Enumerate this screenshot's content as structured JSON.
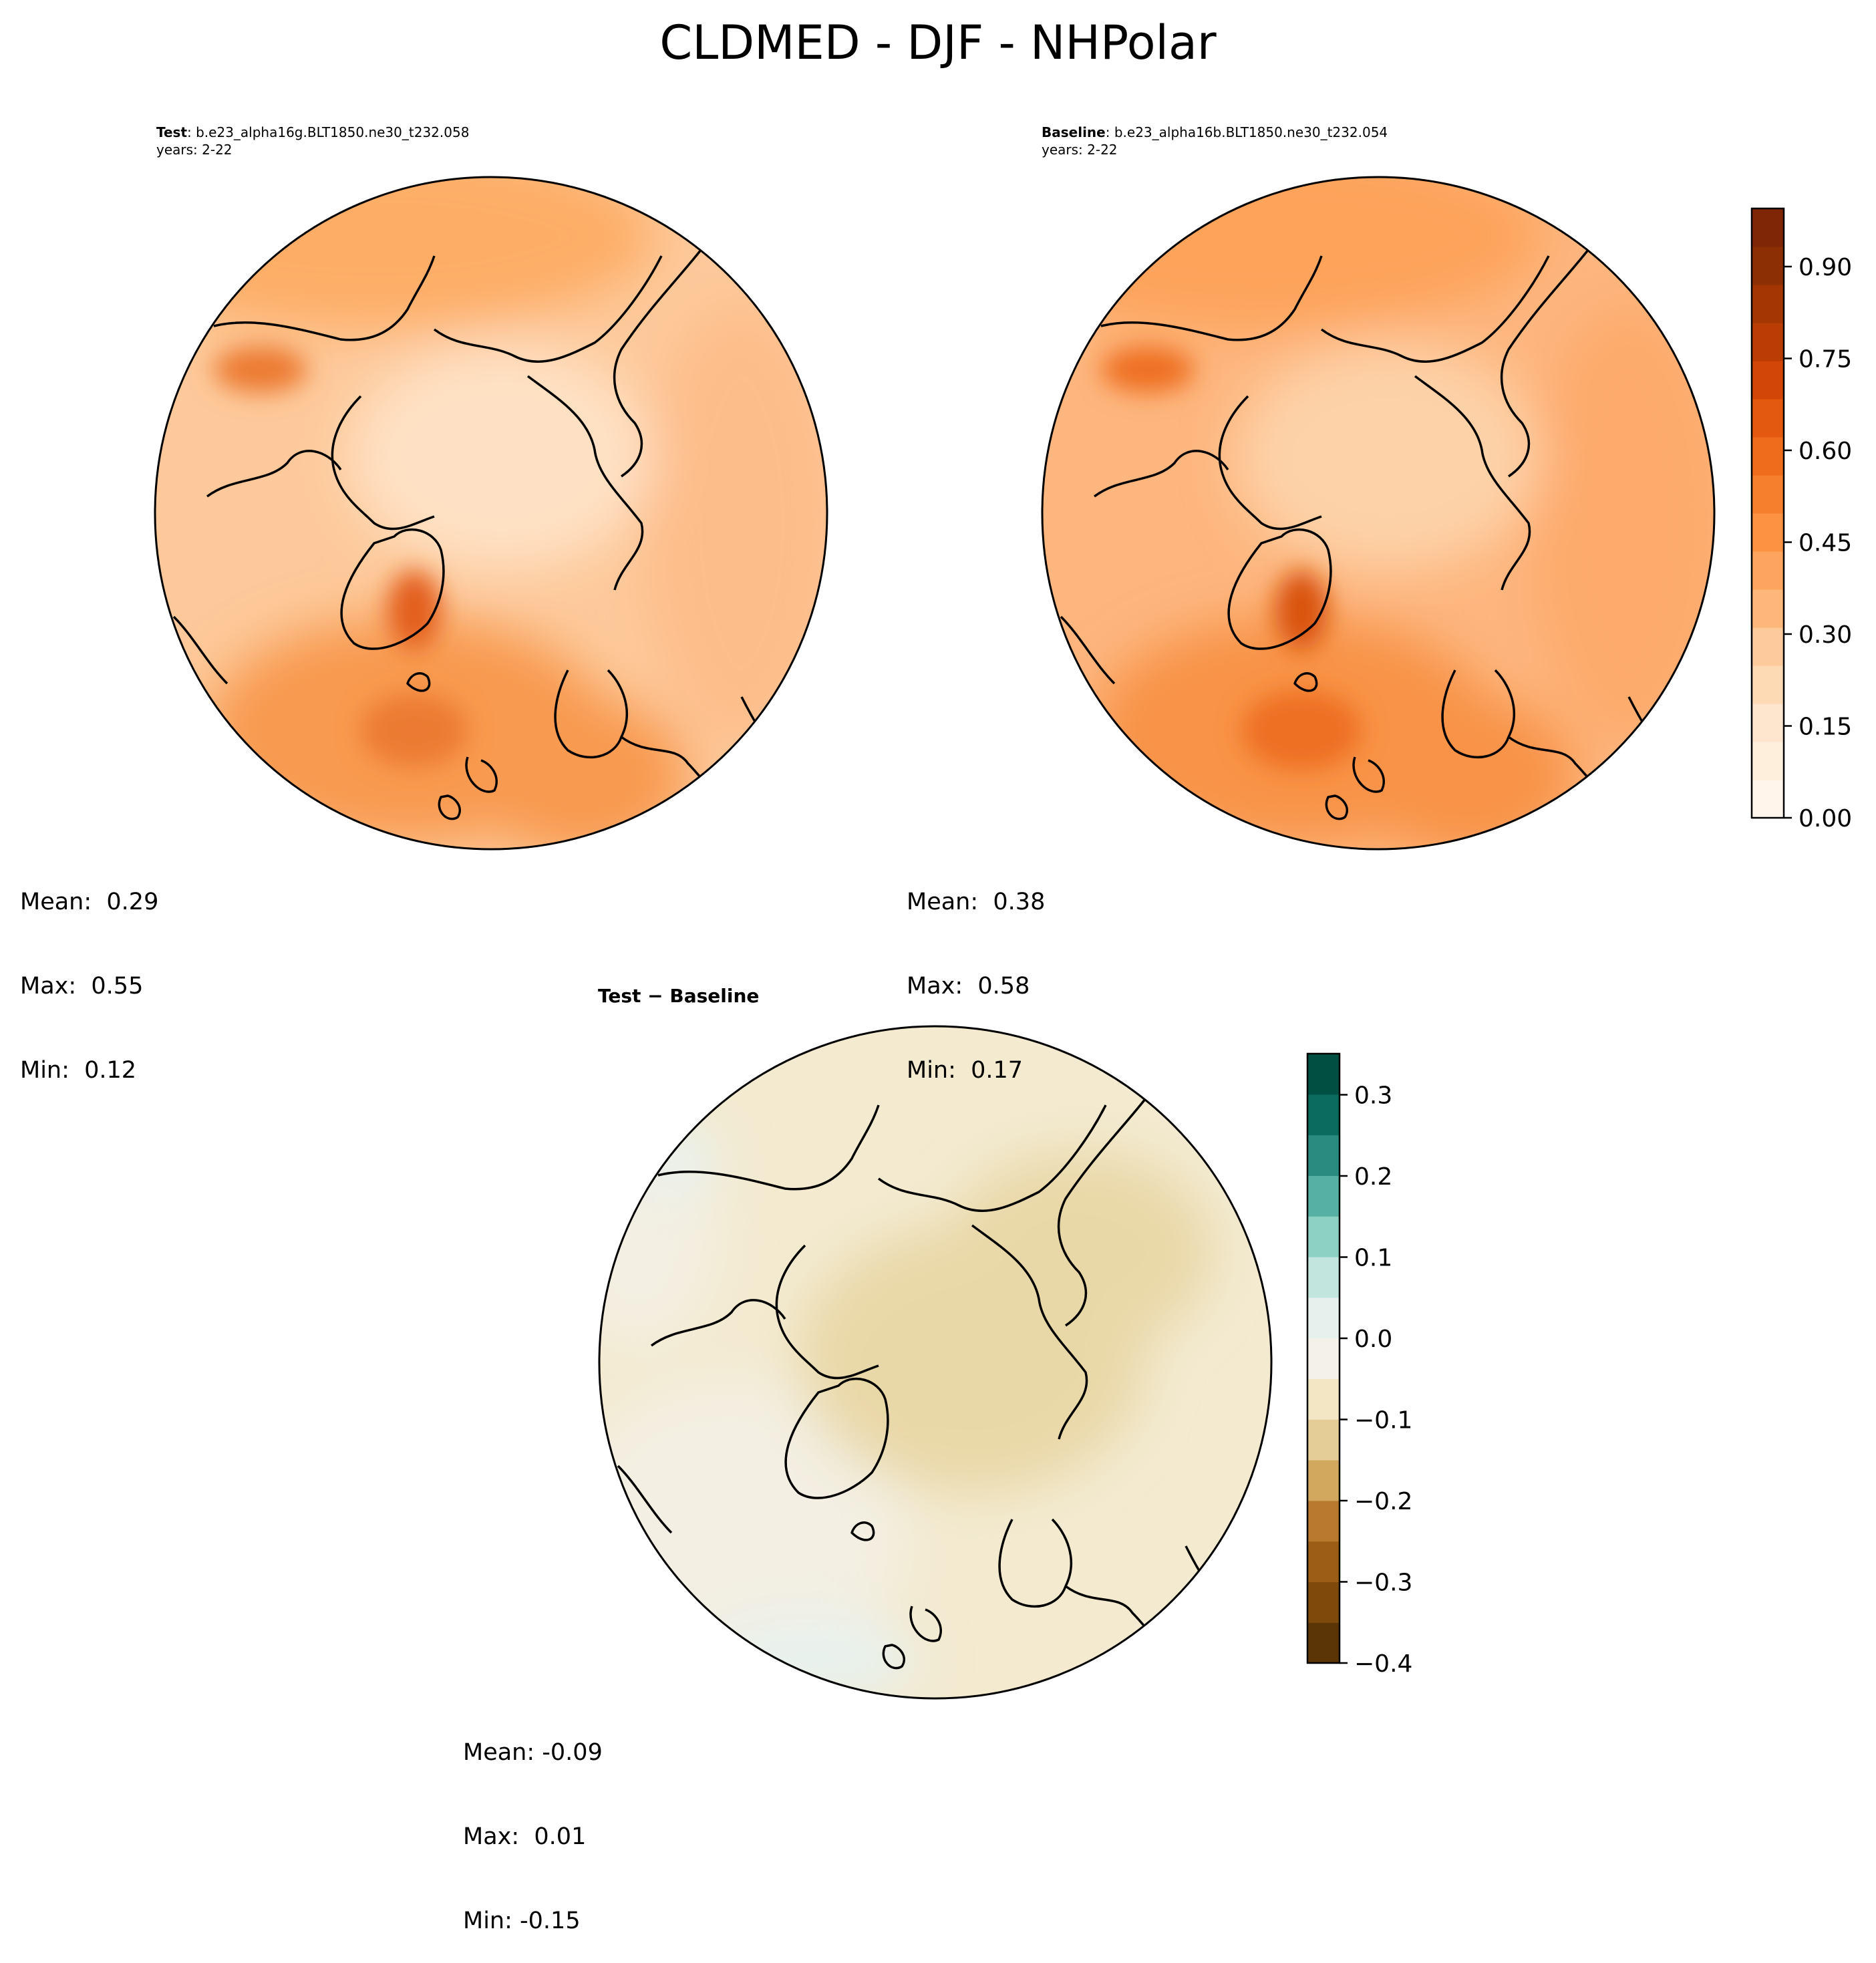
{
  "figure": {
    "title": "CLDMED - DJF - NHPolar"
  },
  "panels": {
    "test": {
      "label": "Test",
      "case": ": b.e23_alpha16g.BLT1850.ne30_t232.058",
      "years": "years: 2-22",
      "stats": {
        "mean": "Mean:  0.29",
        "max": "Max:  0.55",
        "min": "Min:  0.12"
      }
    },
    "baseline": {
      "label": "Baseline",
      "case": ": b.e23_alpha16b.BLT1850.ne30_t232.054",
      "years": "years: 2-22",
      "stats": {
        "mean": "Mean:  0.38",
        "max": "Max:  0.58",
        "min": "Min:  0.17"
      }
    },
    "diff": {
      "title": "Test − Baseline",
      "stats": {
        "mean": "Mean: -0.09",
        "max": "Max:  0.01",
        "min": "Min: -0.15"
      }
    }
  },
  "colorbars": {
    "main": {
      "ticks": [
        "0.00",
        "0.15",
        "0.30",
        "0.45",
        "0.60",
        "0.75",
        "0.90"
      ],
      "colors": [
        "#fff5eb",
        "#feeedc",
        "#fee6ce",
        "#fdd9b4",
        "#fdcb9b",
        "#fdb77a",
        "#fda55e",
        "#fd9243",
        "#f67f2e",
        "#ee6c1c",
        "#e35910",
        "#d24707",
        "#ba3d03",
        "#a33603",
        "#8d2f04",
        "#7f2704"
      ]
    },
    "diff": {
      "ticks": [
        "−0.4",
        "−0.3",
        "−0.2",
        "−0.1",
        "0.0",
        "0.1",
        "0.2",
        "0.3"
      ],
      "colors": [
        "#5c3506",
        "#7d4a0b",
        "#9c5e16",
        "#b9792f",
        "#d2a85f",
        "#e4ce96",
        "#f2e6c4",
        "#f4f1e8",
        "#e6f1ee",
        "#c2e6dd",
        "#8dd1c4",
        "#56b1a4",
        "#2a8c80",
        "#0c6b5f",
        "#004f43"
      ]
    }
  },
  "map_colors": {
    "test": {
      "ocean_north": "#fdad66",
      "atlantic": "#f89a4f",
      "arctic": "#fee1c4",
      "general": "#fdc99a",
      "greenland_peak": "#e35e1a",
      "north_atlantic_peak": "#ec7a32",
      "asia": "#fdbd8a"
    },
    "baseline": {
      "ocean_north": "#fda35a",
      "atlantic": "#f89346",
      "arctic": "#fdd2a8",
      "general": "#fdb67e",
      "greenland_peak": "#d9520f",
      "north_atlantic_peak": "#ee6f22",
      "asia": "#fdaa6c"
    },
    "diff": {
      "general": "#f3ead0",
      "central": "#e9d8a7",
      "light": "#f3efe2",
      "teal": "#e8f2ef"
    }
  }
}
